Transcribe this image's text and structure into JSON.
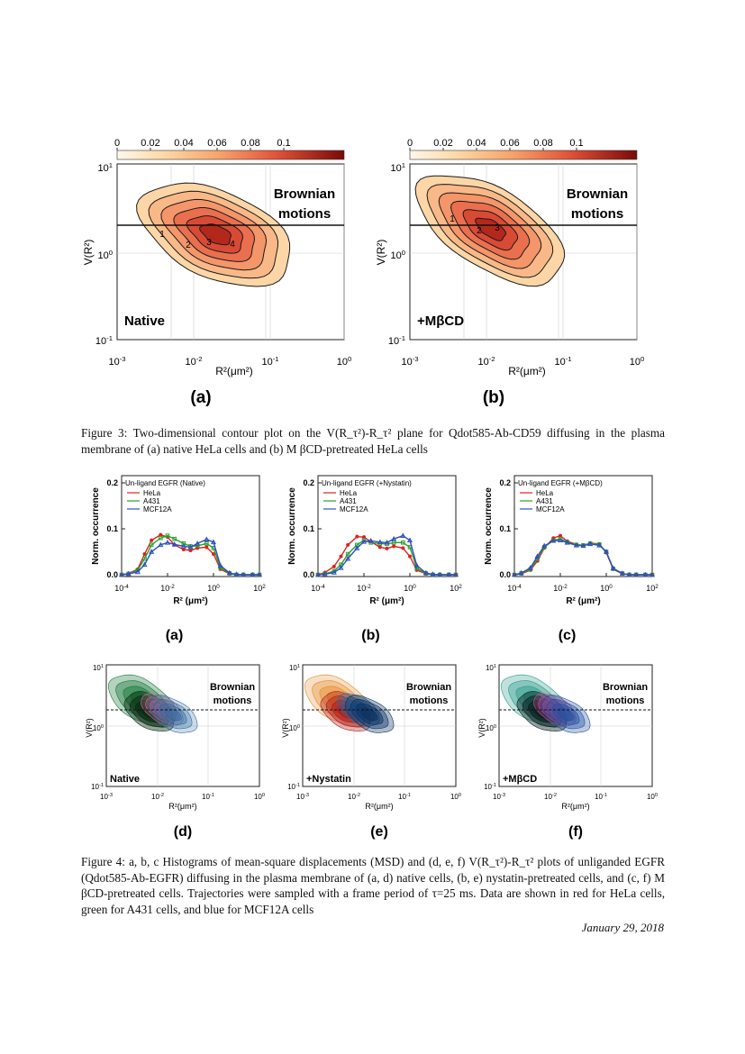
{
  "colorbar_ticks": [
    "0",
    "0.02",
    "0.04",
    "0.06",
    "0.08",
    "0.1"
  ],
  "contour_y_ticks": [
    "10",
    "10",
    "10"
  ],
  "contour_y_exps": [
    "1",
    "0",
    "-1"
  ],
  "contour_x_ticks": [
    "10",
    "10",
    "10",
    "10"
  ],
  "contour_x_exps": [
    "-3",
    "-2",
    "-1",
    ""
  ],
  "contour_x_last": "10",
  "contour_x_last_exp": "0",
  "contour_y_label": "V(R²)",
  "contour_x_label": "R²(μm²)",
  "brownian_line1": "Brownian",
  "brownian_line2": "motions",
  "fig3": {
    "panels": [
      {
        "tag": "(a)",
        "condition": "Native",
        "peaks": [
          "1",
          "2",
          "3",
          "4"
        ]
      },
      {
        "tag": "(b)",
        "condition": "+MβCD",
        "peaks": [
          "1",
          "2",
          "3"
        ]
      }
    ],
    "caption_num": "Figure 3:",
    "caption_text": "Two-dimensional contour plot on the V(R_τ²)-R_τ² plane for Qdot585-Ab-CD59 diffusing in the plasma membrane of (a) native HeLa cells and (b) M βCD-pretreated HeLa cells"
  },
  "fig4": {
    "hist_ylabel": "Norm. occurrence",
    "hist_xlabel": "R² (μm²)",
    "hist_yticks": [
      "0.0",
      "0.1",
      "0.2"
    ],
    "hist_xticks": [
      "10",
      "10",
      "10",
      "10"
    ],
    "hist_xexps": [
      "-4",
      "-2",
      "0",
      "2"
    ],
    "legend_items": [
      "HeLa",
      "A431",
      "MCF12A"
    ],
    "panels": [
      {
        "tag": "(a)",
        "title": "Un-ligand EGFR (Native)"
      },
      {
        "tag": "(b)",
        "title": "Un-ligand EGFR (+Nystatin)"
      },
      {
        "tag": "(c)",
        "title": "Un-ligand EGFR (+MβCD)"
      }
    ],
    "lower_panels": [
      {
        "tag": "(d)",
        "condition": "Native"
      },
      {
        "tag": "(e)",
        "condition": "+Nystatin"
      },
      {
        "tag": "(f)",
        "condition": "+MβCD"
      }
    ],
    "caption_num": "Figure 4:",
    "caption_text": "a, b, c Histograms of mean-square displacements (MSD) and (d, e, f) V(R_τ²)-R_τ² plots of unliganded EGFR (Qdot585-Ab-EGFR) diffusing in the plasma membrane of (a, d) native cells, (b, e) nystatin-pretreated cells, and (c, f) M βCD-pretreated cells. Trajectories were sampled with a frame period of τ=25 ms. Data are shown in red for HeLa cells, green for A431 cells, and blue for MCF12A cells"
  },
  "footer_date": "January 29, 2018",
  "colors": {
    "hela": "#e02020",
    "a431": "#2aa02a",
    "mcf12a": "#2f4fc0"
  },
  "chart_data": [
    {
      "type": "line",
      "title": "Un-ligand EGFR (Native)",
      "xlabel": "R² (μm²)",
      "ylabel": "Norm. occurrence",
      "x_scale": "log",
      "xlim": [
        0.0001,
        100
      ],
      "ylim": [
        0,
        0.2
      ],
      "x": [
        0.0001,
        0.0002,
        0.0005,
        0.001,
        0.002,
        0.005,
        0.01,
        0.02,
        0.05,
        0.1,
        0.2,
        0.5,
        1,
        2,
        5,
        10,
        20,
        50,
        100
      ],
      "series": [
        {
          "name": "HeLa",
          "values": [
            0.0,
            0.003,
            0.012,
            0.045,
            0.075,
            0.087,
            0.082,
            0.065,
            0.055,
            0.053,
            0.058,
            0.06,
            0.045,
            0.012,
            0.002,
            0.0,
            0.0,
            0.0,
            0.0
          ]
        },
        {
          "name": "A431",
          "values": [
            0.0,
            0.002,
            0.01,
            0.035,
            0.065,
            0.08,
            0.085,
            0.078,
            0.068,
            0.062,
            0.063,
            0.068,
            0.058,
            0.015,
            0.003,
            0.0,
            0.0,
            0.0,
            0.0
          ]
        },
        {
          "name": "MCF12A",
          "values": [
            0.0,
            0.002,
            0.006,
            0.022,
            0.05,
            0.065,
            0.07,
            0.066,
            0.062,
            0.06,
            0.068,
            0.077,
            0.071,
            0.02,
            0.004,
            0.001,
            0.0,
            0.0,
            0.0
          ]
        }
      ]
    },
    {
      "type": "line",
      "title": "Un-ligand EGFR (+Nystatin)",
      "xlabel": "R² (μm²)",
      "ylabel": "Norm. occurrence",
      "x_scale": "log",
      "xlim": [
        0.0001,
        100
      ],
      "ylim": [
        0,
        0.2
      ],
      "x": [
        0.0001,
        0.0002,
        0.0005,
        0.001,
        0.002,
        0.005,
        0.01,
        0.02,
        0.05,
        0.1,
        0.2,
        0.5,
        1,
        2,
        5,
        10,
        20,
        50,
        100
      ],
      "series": [
        {
          "name": "HeLa",
          "values": [
            0.0,
            0.005,
            0.018,
            0.04,
            0.065,
            0.083,
            0.082,
            0.072,
            0.06,
            0.057,
            0.062,
            0.058,
            0.04,
            0.01,
            0.002,
            0.0,
            0.0,
            0.0,
            0.0
          ]
        },
        {
          "name": "A431",
          "values": [
            0.0,
            0.002,
            0.008,
            0.022,
            0.045,
            0.065,
            0.075,
            0.07,
            0.068,
            0.067,
            0.07,
            0.07,
            0.06,
            0.014,
            0.003,
            0.0,
            0.0,
            0.0,
            0.0
          ]
        },
        {
          "name": "MCF12A",
          "values": [
            0.0,
            0.001,
            0.005,
            0.015,
            0.035,
            0.058,
            0.072,
            0.074,
            0.071,
            0.07,
            0.078,
            0.085,
            0.075,
            0.02,
            0.004,
            0.001,
            0.0,
            0.0,
            0.0
          ]
        }
      ]
    },
    {
      "type": "line",
      "title": "Un-ligand EGFR (+MβCD)",
      "xlabel": "R² (μm²)",
      "ylabel": "Norm. occurrence",
      "x_scale": "log",
      "xlim": [
        0.0001,
        100
      ],
      "ylim": [
        0,
        0.2
      ],
      "x": [
        0.0001,
        0.0002,
        0.0005,
        0.001,
        0.002,
        0.005,
        0.01,
        0.02,
        0.05,
        0.1,
        0.2,
        0.5,
        1,
        2,
        5,
        10,
        20,
        50,
        100
      ],
      "series": [
        {
          "name": "HeLa",
          "values": [
            0.0,
            0.002,
            0.01,
            0.03,
            0.058,
            0.08,
            0.085,
            0.073,
            0.066,
            0.064,
            0.069,
            0.067,
            0.048,
            0.012,
            0.002,
            0.0,
            0.0,
            0.0,
            0.0
          ]
        },
        {
          "name": "A431",
          "values": [
            0.0,
            0.003,
            0.012,
            0.035,
            0.06,
            0.075,
            0.078,
            0.071,
            0.065,
            0.064,
            0.068,
            0.066,
            0.05,
            0.013,
            0.003,
            0.0,
            0.0,
            0.0,
            0.0
          ]
        },
        {
          "name": "MCF12A",
          "values": [
            0.0,
            0.004,
            0.015,
            0.04,
            0.063,
            0.074,
            0.075,
            0.07,
            0.064,
            0.063,
            0.067,
            0.064,
            0.05,
            0.014,
            0.003,
            0.0,
            0.0,
            0.0,
            0.0
          ]
        }
      ]
    }
  ]
}
